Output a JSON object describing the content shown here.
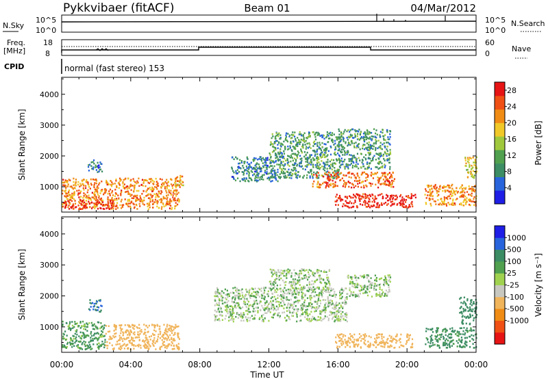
{
  "header": {
    "station": "Pykkvibaer (fitACF)",
    "beam": "Beam 01",
    "date": "04/Mar/2012"
  },
  "strips": {
    "nsky_label": "N.Sky",
    "nsearch_label": "N.Search",
    "count_top_left": "10^5",
    "count_bottom_left": "10^0",
    "count_top_right": "10^5",
    "count_bottom_right": "10^0",
    "freq_label": "Freq.",
    "freq_unit": "[MHz]",
    "freq_top": "18",
    "freq_bottom": "8",
    "nave_label": "Nave",
    "nave_top": "60",
    "nave_bottom": "0",
    "cpid_label": "CPID",
    "cpid_text": "normal (fast stereo) 153"
  },
  "colors": {
    "ground_scatter": "#c8c8c0",
    "power_scale": [
      "#1e1ee6",
      "#2864dc",
      "#3c8c64",
      "#50a050",
      "#a0c83c",
      "#f0c828",
      "#f08c14",
      "#f05014",
      "#e61414"
    ],
    "velocity_scale": [
      "#e61414",
      "#f05014",
      "#f08c14",
      "#f0b45a",
      "#c8c8c0",
      "#a0d250",
      "#50a050",
      "#3c8c64",
      "#2864dc",
      "#1e1ee6"
    ]
  },
  "chart_data": [
    {
      "type": "heatmap",
      "name": "power",
      "ylabel": "Slant Range [km]",
      "yticks": [
        "1000",
        "2000",
        "3000",
        "4000"
      ],
      "ylim": [
        180,
        4550
      ],
      "xlim_hours": [
        0,
        24
      ],
      "xticks": [
        "00:00",
        "04:00",
        "08:00",
        "12:00",
        "16:00",
        "20:00",
        "00:00"
      ],
      "colorbar": {
        "label": "Power [dB]",
        "ticks": [
          "4",
          "8",
          "12",
          "16",
          "20",
          "24",
          "28"
        ],
        "range": [
          0,
          30
        ]
      },
      "regions": [
        {
          "t0": 0.0,
          "t1": 6.8,
          "r0": 300,
          "r1": 1300,
          "value": 22
        },
        {
          "t0": 0.0,
          "t1": 3.0,
          "r0": 300,
          "r1": 600,
          "value": 27
        },
        {
          "t0": 6.5,
          "t1": 7.0,
          "r0": 900,
          "r1": 1400,
          "value": 20
        },
        {
          "t0": 1.5,
          "t1": 2.3,
          "r0": 1500,
          "r1": 1900,
          "value": 8
        },
        {
          "t0": 9.8,
          "t1": 12.5,
          "r0": 1200,
          "r1": 2000,
          "value": 8
        },
        {
          "t0": 12.0,
          "t1": 16.2,
          "r0": 1300,
          "r1": 2800,
          "value": 10
        },
        {
          "t0": 14.5,
          "t1": 19.3,
          "r0": 1000,
          "r1": 1500,
          "value": 24
        },
        {
          "t0": 15.8,
          "t1": 20.5,
          "r0": 350,
          "r1": 800,
          "value": 28
        },
        {
          "t0": 16.0,
          "t1": 19.0,
          "r0": 1600,
          "r1": 2900,
          "value": 10
        },
        {
          "t0": 21.0,
          "t1": 24.0,
          "r0": 400,
          "r1": 1100,
          "value": 22
        },
        {
          "t0": 23.3,
          "t1": 24.0,
          "r0": 1300,
          "r1": 2000,
          "value": 18
        }
      ]
    },
    {
      "type": "heatmap",
      "name": "velocity",
      "xlabel": "Time UT",
      "ylabel": "Slant Range [km]",
      "yticks": [
        "1000",
        "2000",
        "3000",
        "4000"
      ],
      "ylim": [
        180,
        4550
      ],
      "xlim_hours": [
        0,
        24
      ],
      "xticks": [
        "00:00",
        "04:00",
        "08:00",
        "12:00",
        "16:00",
        "20:00",
        "00:00"
      ],
      "colorbar": {
        "label": "Velocity [m s⁻¹]",
        "ticks": [
          "1000",
          "500",
          "100",
          "25",
          "-25",
          "-100",
          "-500",
          "-1000"
        ],
        "range": [
          -1000,
          1000
        ]
      },
      "regions": [
        {
          "t0": 0.0,
          "t1": 2.5,
          "r0": 300,
          "r1": 1200,
          "value": 100
        },
        {
          "t0": 2.5,
          "t1": 6.8,
          "r0": 300,
          "r1": 1100,
          "value": -200
        },
        {
          "t0": 1.5,
          "t1": 2.3,
          "r0": 1500,
          "r1": 1900,
          "value": 500
        },
        {
          "t0": 8.8,
          "t1": 16.5,
          "r0": 1200,
          "r1": 2300,
          "value": 0
        },
        {
          "t0": 12.0,
          "t1": 15.5,
          "r0": 2200,
          "r1": 2900,
          "value": 0
        },
        {
          "t0": 15.8,
          "t1": 20.3,
          "r0": 350,
          "r1": 800,
          "value": -300
        },
        {
          "t0": 16.5,
          "t1": 19.0,
          "r0": 2000,
          "r1": 2700,
          "value": 0
        },
        {
          "t0": 21.0,
          "t1": 24.0,
          "r0": 350,
          "r1": 1000,
          "value": 150
        },
        {
          "t0": 23.0,
          "t1": 24.0,
          "r0": 1100,
          "r1": 2000,
          "value": 300
        }
      ]
    }
  ]
}
